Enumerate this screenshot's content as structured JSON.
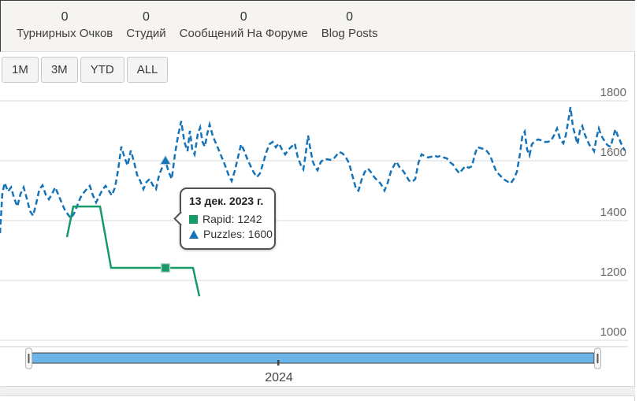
{
  "stats": [
    {
      "value": "0",
      "label": "Турнирных Очков"
    },
    {
      "value": "0",
      "label": "Студий"
    },
    {
      "value": "0",
      "label": "Сообщений На Форуме"
    },
    {
      "value": "0",
      "label": "Blog Posts"
    }
  ],
  "range_buttons": [
    {
      "label": "1M"
    },
    {
      "label": "3M"
    },
    {
      "label": "YTD"
    },
    {
      "label": "ALL"
    }
  ],
  "colors": {
    "rapid_green": "#159a68",
    "puzzles_blue": "#1673b8",
    "navigator_fill": "#6cb4e8",
    "gridline": "#d9d9d9",
    "axis_label": "#666666"
  },
  "chart_data": {
    "type": "line",
    "title": "",
    "xlabel": "",
    "ylabel": "",
    "grid": true,
    "y_axis": {
      "ticks": [
        1000,
        1200,
        1400,
        1600,
        1800
      ],
      "ylim": [
        1000,
        1800
      ],
      "side": "right"
    },
    "x_axis": {
      "ticks": [
        {
          "label": "2024",
          "x": 353
        }
      ]
    },
    "series": [
      {
        "name": "Puzzles",
        "style": "dashed",
        "color": "#1673b8",
        "marker": {
          "x": 210,
          "value": 1600,
          "shape": "triangle"
        },
        "points": [
          [
            0,
            1358
          ],
          [
            3,
            1492
          ],
          [
            6,
            1526
          ],
          [
            10,
            1497
          ],
          [
            14,
            1511
          ],
          [
            18,
            1474
          ],
          [
            22,
            1447
          ],
          [
            26,
            1489
          ],
          [
            30,
            1511
          ],
          [
            34,
            1474
          ],
          [
            38,
            1432
          ],
          [
            42,
            1416
          ],
          [
            46,
            1458
          ],
          [
            50,
            1505
          ],
          [
            54,
            1518
          ],
          [
            58,
            1487
          ],
          [
            62,
            1471
          ],
          [
            66,
            1489
          ],
          [
            70,
            1511
          ],
          [
            74,
            1487
          ],
          [
            78,
            1461
          ],
          [
            82,
            1437
          ],
          [
            86,
            1421
          ],
          [
            90,
            1408
          ],
          [
            94,
            1424
          ],
          [
            98,
            1450
          ],
          [
            102,
            1476
          ],
          [
            106,
            1492
          ],
          [
            110,
            1505
          ],
          [
            114,
            1516
          ],
          [
            118,
            1484
          ],
          [
            122,
            1461
          ],
          [
            126,
            1482
          ],
          [
            130,
            1503
          ],
          [
            134,
            1516
          ],
          [
            138,
            1500
          ],
          [
            142,
            1484
          ],
          [
            146,
            1511
          ],
          [
            150,
            1571
          ],
          [
            154,
            1647
          ],
          [
            158,
            1611
          ],
          [
            162,
            1584
          ],
          [
            166,
            1634
          ],
          [
            170,
            1597
          ],
          [
            174,
            1553
          ],
          [
            178,
            1532
          ],
          [
            182,
            1505
          ],
          [
            186,
            1529
          ],
          [
            190,
            1539
          ],
          [
            194,
            1518
          ],
          [
            198,
            1505
          ],
          [
            202,
            1553
          ],
          [
            206,
            1579
          ],
          [
            210,
            1600
          ],
          [
            214,
            1563
          ],
          [
            218,
            1539
          ],
          [
            222,
            1621
          ],
          [
            226,
            1684
          ],
          [
            230,
            1732
          ],
          [
            234,
            1663
          ],
          [
            238,
            1632
          ],
          [
            241,
            1700
          ],
          [
            244,
            1637
          ],
          [
            247,
            1621
          ],
          [
            251,
            1689
          ],
          [
            254,
            1711
          ],
          [
            257,
            1663
          ],
          [
            260,
            1647
          ],
          [
            263,
            1689
          ],
          [
            266,
            1721
          ],
          [
            270,
            1684
          ],
          [
            274,
            1658
          ],
          [
            278,
            1634
          ],
          [
            282,
            1608
          ],
          [
            286,
            1582
          ],
          [
            290,
            1553
          ],
          [
            294,
            1532
          ],
          [
            298,
            1566
          ],
          [
            302,
            1611
          ],
          [
            306,
            1655
          ],
          [
            310,
            1632
          ],
          [
            314,
            1605
          ],
          [
            318,
            1582
          ],
          [
            322,
            1561
          ],
          [
            326,
            1545
          ],
          [
            330,
            1558
          ],
          [
            334,
            1592
          ],
          [
            338,
            1629
          ],
          [
            342,
            1655
          ],
          [
            346,
            1663
          ],
          [
            350,
            1645
          ],
          [
            354,
            1658
          ],
          [
            358,
            1637
          ],
          [
            362,
            1621
          ],
          [
            366,
            1637
          ],
          [
            370,
            1647
          ],
          [
            374,
            1658
          ],
          [
            378,
            1611
          ],
          [
            382,
            1584
          ],
          [
            385,
            1571
          ],
          [
            388,
            1624
          ],
          [
            391,
            1684
          ],
          [
            394,
            1637
          ],
          [
            397,
            1597
          ],
          [
            400,
            1579
          ],
          [
            403,
            1568
          ],
          [
            407,
            1595
          ],
          [
            411,
            1605
          ],
          [
            415,
            1605
          ],
          [
            419,
            1603
          ],
          [
            423,
            1605
          ],
          [
            427,
            1618
          ],
          [
            431,
            1629
          ],
          [
            435,
            1624
          ],
          [
            439,
            1611
          ],
          [
            443,
            1592
          ],
          [
            447,
            1553
          ],
          [
            452,
            1505
          ],
          [
            455,
            1500
          ],
          [
            459,
            1537
          ],
          [
            463,
            1563
          ],
          [
            467,
            1574
          ],
          [
            471,
            1561
          ],
          [
            475,
            1545
          ],
          [
            479,
            1534
          ],
          [
            483,
            1524
          ],
          [
            488,
            1500
          ],
          [
            492,
            1526
          ],
          [
            496,
            1563
          ],
          [
            500,
            1584
          ],
          [
            503,
            1597
          ],
          [
            507,
            1579
          ],
          [
            511,
            1568
          ],
          [
            515,
            1553
          ],
          [
            519,
            1534
          ],
          [
            523,
            1529
          ],
          [
            527,
            1539
          ],
          [
            531,
            1592
          ],
          [
            535,
            1621
          ],
          [
            539,
            1616
          ],
          [
            543,
            1611
          ],
          [
            547,
            1613
          ],
          [
            551,
            1618
          ],
          [
            555,
            1613
          ],
          [
            559,
            1616
          ],
          [
            563,
            1611
          ],
          [
            567,
            1608
          ],
          [
            571,
            1595
          ],
          [
            575,
            1587
          ],
          [
            579,
            1571
          ],
          [
            583,
            1558
          ],
          [
            587,
            1571
          ],
          [
            591,
            1582
          ],
          [
            595,
            1576
          ],
          [
            599,
            1582
          ],
          [
            603,
            1624
          ],
          [
            606,
            1645
          ],
          [
            610,
            1642
          ],
          [
            614,
            1639
          ],
          [
            618,
            1632
          ],
          [
            622,
            1618
          ],
          [
            626,
            1589
          ],
          [
            630,
            1563
          ],
          [
            635,
            1550
          ],
          [
            640,
            1537
          ],
          [
            645,
            1529
          ],
          [
            648,
            1524
          ],
          [
            652,
            1539
          ],
          [
            656,
            1563
          ],
          [
            660,
            1624
          ],
          [
            663,
            1684
          ],
          [
            666,
            1697
          ],
          [
            669,
            1637
          ],
          [
            672,
            1618
          ],
          [
            675,
            1655
          ],
          [
            679,
            1666
          ],
          [
            683,
            1671
          ],
          [
            687,
            1668
          ],
          [
            691,
            1663
          ],
          [
            695,
            1663
          ],
          [
            699,
            1666
          ],
          [
            703,
            1684
          ],
          [
            707,
            1708
          ],
          [
            711,
            1671
          ],
          [
            715,
            1658
          ],
          [
            718,
            1684
          ],
          [
            721,
            1729
          ],
          [
            724,
            1779
          ],
          [
            727,
            1716
          ],
          [
            730,
            1684
          ],
          [
            733,
            1655
          ],
          [
            736,
            1700
          ],
          [
            739,
            1716
          ],
          [
            742,
            1689
          ],
          [
            745,
            1671
          ],
          [
            748,
            1653
          ],
          [
            751,
            1645
          ],
          [
            754,
            1632
          ],
          [
            757,
            1676
          ],
          [
            760,
            1708
          ],
          [
            763,
            1684
          ],
          [
            766,
            1671
          ],
          [
            769,
            1658
          ],
          [
            772,
            1650
          ],
          [
            775,
            1647
          ],
          [
            778,
            1676
          ],
          [
            781,
            1705
          ],
          [
            784,
            1684
          ],
          [
            787,
            1666
          ],
          [
            790,
            1647
          ],
          [
            793,
            1634
          ]
        ]
      },
      {
        "name": "Rapid",
        "style": "solid",
        "color": "#159a68",
        "marker": {
          "x": 210,
          "value": 1242,
          "shape": "square"
        },
        "points": [
          [
            85,
            1345
          ],
          [
            93,
            1447
          ],
          [
            127,
            1447
          ],
          [
            141,
            1242
          ],
          [
            245,
            1242
          ],
          [
            253,
            1147
          ]
        ]
      }
    ],
    "tooltip": {
      "date": "13 дек. 2023 г.",
      "rows": [
        {
          "swatch": "square",
          "color": "#159a68",
          "text": "Rapid: 1242"
        },
        {
          "swatch": "triangle",
          "color": "#1673b8",
          "text": "Puzzles: 1600"
        }
      ]
    },
    "navigator": {
      "label": "2024",
      "range": "full"
    }
  }
}
